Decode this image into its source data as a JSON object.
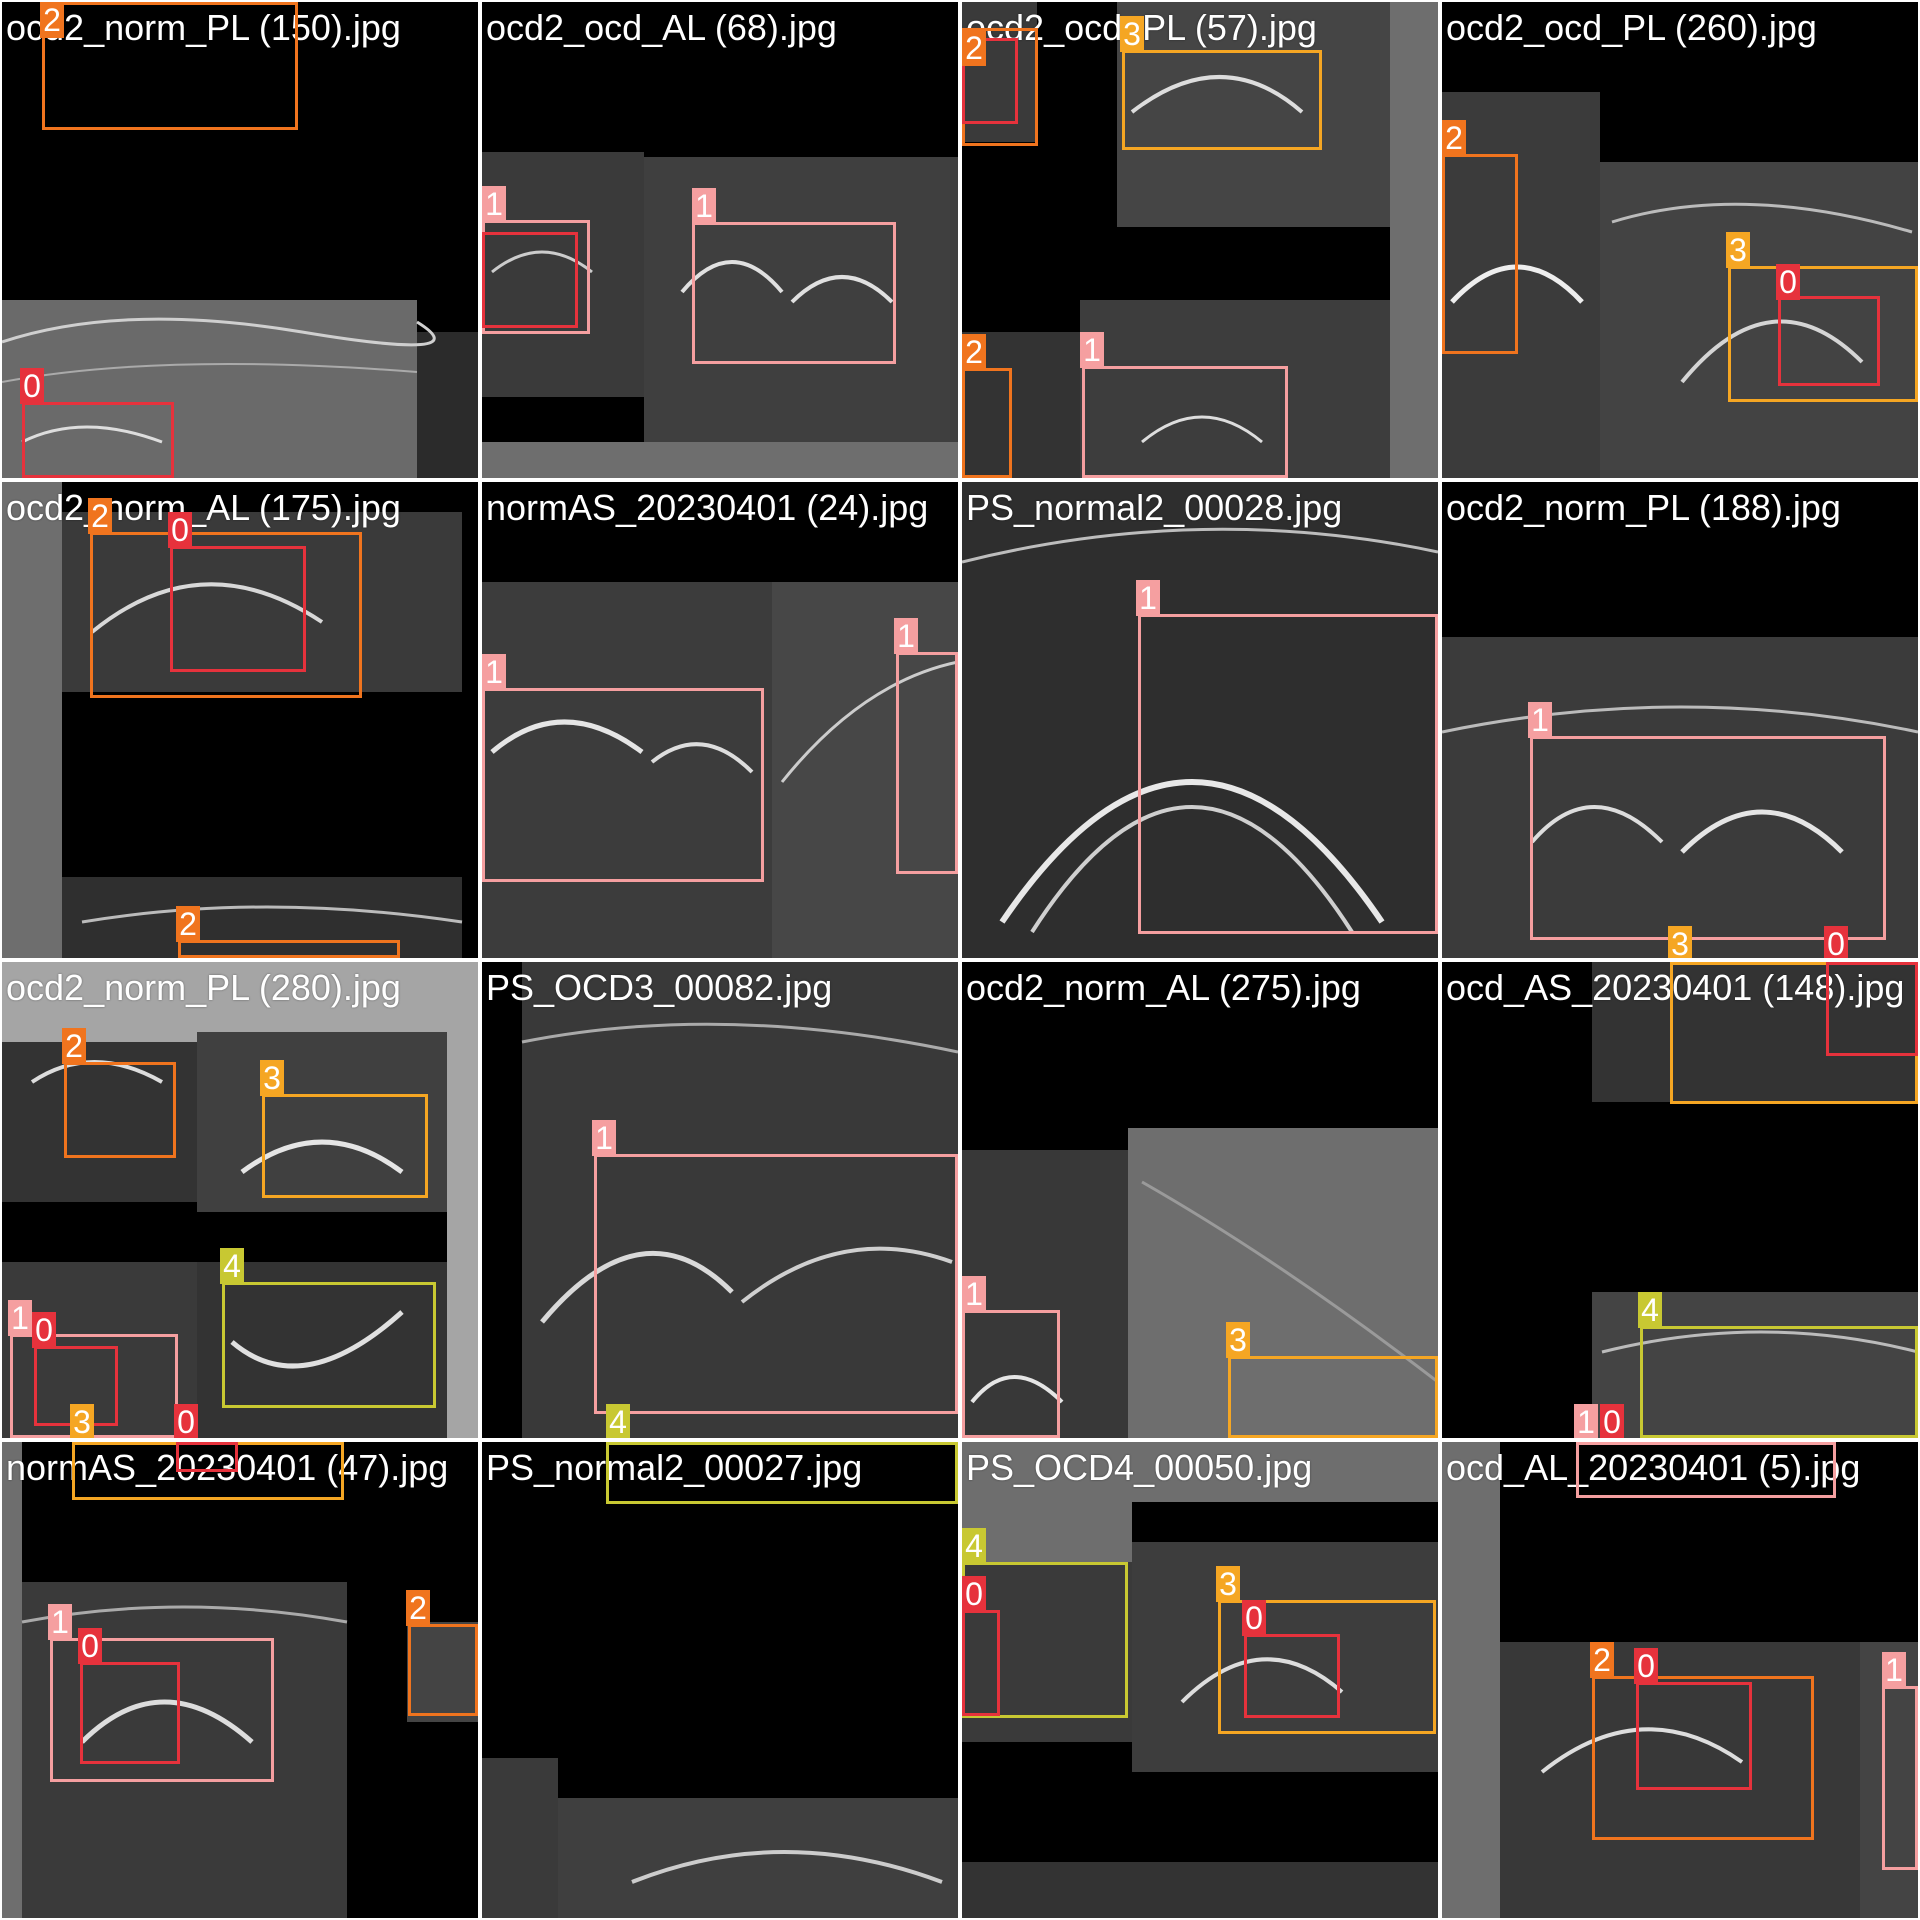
{
  "colors": {
    "0": "#e6323c",
    "1": "#f59fa0",
    "2": "#f0741e",
    "3": "#f5a623",
    "4": "#c8c832",
    "gray": "#6e6e6e"
  },
  "tiles": [
    {
      "filename": "ocd2_norm_PL (150).jpg",
      "labels": [
        "2",
        "0"
      ]
    },
    {
      "filename": "ocd2_ocd_AL (68).jpg",
      "labels": [
        "1",
        "1"
      ]
    },
    {
      "filename": "ocd2_ocd_PL (57).jpg",
      "labels": [
        "2",
        "3",
        "2",
        "1"
      ]
    },
    {
      "filename": "ocd2_ocd_PL (260).jpg",
      "labels": [
        "2",
        "3",
        "0"
      ]
    },
    {
      "filename": "ocd2_norm_AL (175).jpg",
      "labels": [
        "2",
        "0",
        "2"
      ]
    },
    {
      "filename": "normAS_20230401 (24).jpg",
      "labels": [
        "1",
        "1"
      ]
    },
    {
      "filename": "PS_normal2_00028.jpg",
      "labels": [
        "1"
      ]
    },
    {
      "filename": "ocd2_norm_PL (188).jpg",
      "labels": [
        "1",
        "3",
        "0"
      ]
    },
    {
      "filename": "ocd2_norm_PL (280).jpg",
      "labels": [
        "2",
        "3",
        "4",
        "1",
        "0",
        "3",
        "0"
      ]
    },
    {
      "filename": "PS_OCD3_00082.jpg",
      "labels": [
        "1",
        "4"
      ]
    },
    {
      "filename": "ocd2_norm_AL (275).jpg",
      "labels": [
        "1",
        "3"
      ]
    },
    {
      "filename": "ocd_AS_20230401 (148).jpg",
      "labels": [
        "4",
        "1",
        "0"
      ]
    },
    {
      "filename": "normAS_20230401 (47).jpg",
      "labels": [
        "1",
        "0",
        "2"
      ]
    },
    {
      "filename": "PS_normal2_00027.jpg",
      "labels": []
    },
    {
      "filename": "PS_OCD4_00050.jpg",
      "labels": [
        "4",
        "0",
        "3",
        "0"
      ]
    },
    {
      "filename": "ocd_AL_20230401 (5).jpg",
      "labels": [
        "2",
        "0",
        "1"
      ]
    }
  ]
}
